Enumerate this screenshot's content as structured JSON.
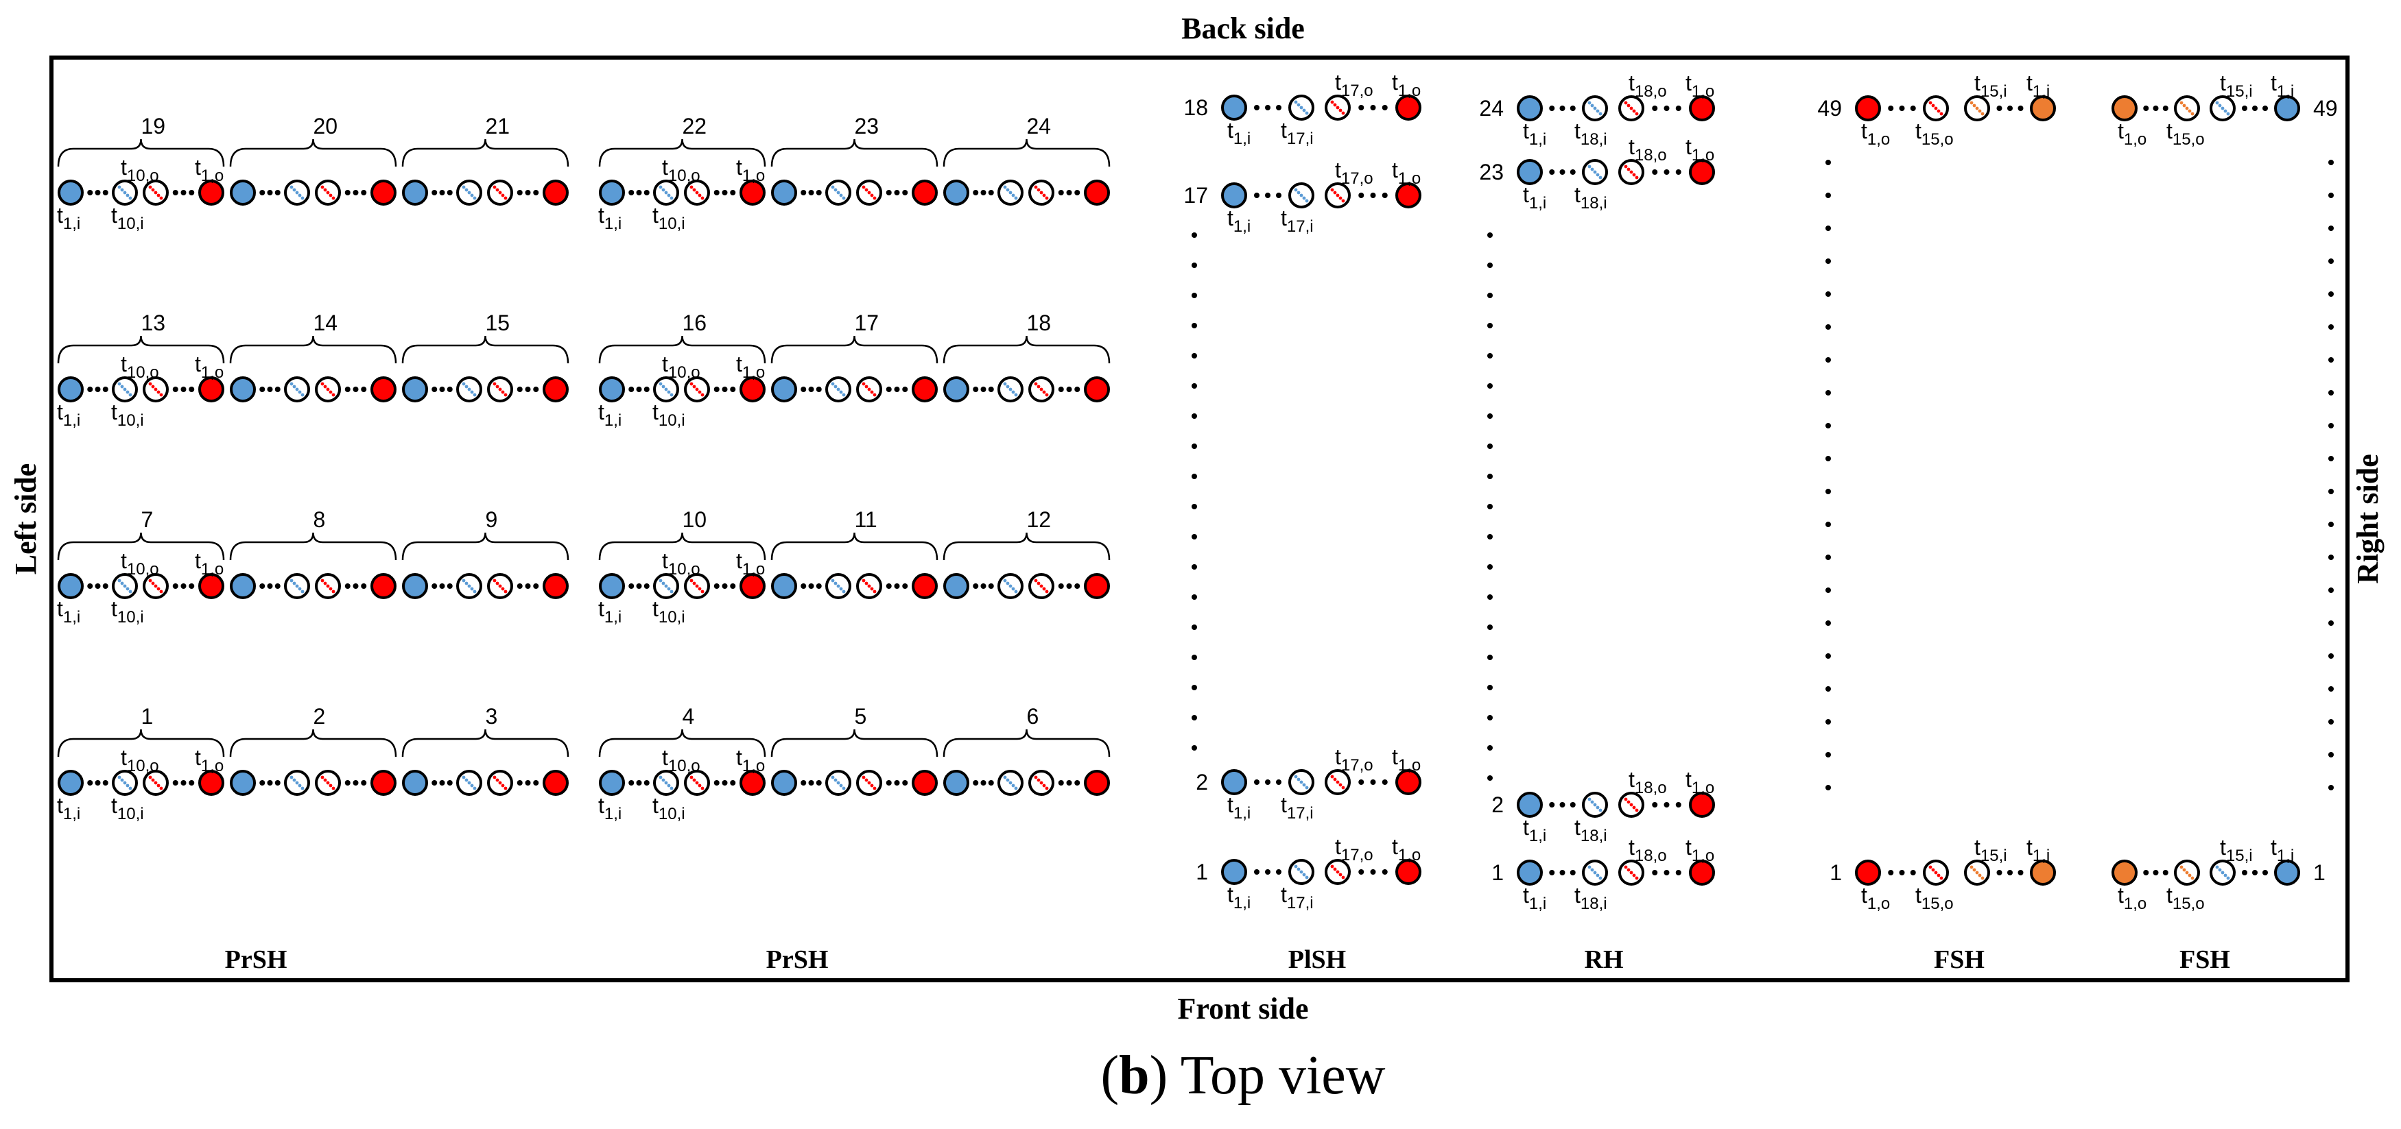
{
  "figure": {
    "back_label": "Back side",
    "front_label": "Front side",
    "left_label": "Left side",
    "right_label": "Right side",
    "caption_letter": "b",
    "caption_text": " Top view",
    "open_paren": "(",
    "close_paren": ")"
  },
  "colors": {
    "blue": "#5b9bd5",
    "red": "#ff0000",
    "orange": "#ed7d31",
    "white": "#ffffff",
    "stroke": "#000000"
  },
  "prsh_panels": [
    {
      "label": "PrSH",
      "rows": [
        {
          "groups": [
            "19",
            "20",
            "21"
          ]
        },
        {
          "groups": [
            "13",
            "14",
            "15"
          ]
        },
        {
          "groups": [
            "7",
            "8",
            "9"
          ]
        },
        {
          "groups": [
            "1",
            "2",
            "3"
          ]
        }
      ]
    },
    {
      "label": "PrSH",
      "rows": [
        {
          "groups": [
            "22",
            "23",
            "24"
          ]
        },
        {
          "groups": [
            "16",
            "17",
            "18"
          ]
        },
        {
          "groups": [
            "10",
            "11",
            "12"
          ]
        },
        {
          "groups": [
            "4",
            "5",
            "6"
          ]
        }
      ]
    }
  ],
  "prsh_labels": {
    "first_in": [
      "t",
      "1,i"
    ],
    "tenth_in": [
      "t",
      "10,i"
    ],
    "tenth_out": [
      "t",
      "10,o"
    ],
    "first_out": [
      "t",
      "1,o"
    ]
  },
  "plsh": {
    "label": "PlSH",
    "rows": [
      {
        "num": "18",
        "labels": [
          [
            "t",
            "1,i"
          ],
          [
            "t",
            "17,i"
          ],
          [
            "t",
            "17,o"
          ],
          [
            "t",
            "1,o"
          ]
        ]
      },
      {
        "num": "17",
        "labels": [
          [
            "t",
            "1,i"
          ],
          [
            "t",
            "17,i"
          ],
          [
            "t",
            "17,o"
          ],
          [
            "t",
            "1,o"
          ]
        ]
      },
      {
        "num": "2",
        "labels": [
          [
            "t",
            "1,i"
          ],
          [
            "t",
            "17,i"
          ],
          [
            "t",
            "17,o"
          ],
          [
            "t",
            "1,o"
          ]
        ]
      },
      {
        "num": "1",
        "labels": [
          [
            "t",
            "1,i"
          ],
          [
            "t",
            "17,i"
          ],
          [
            "t",
            "17,o"
          ],
          [
            "t",
            "1,o"
          ]
        ]
      }
    ]
  },
  "rh": {
    "label": "RH",
    "rows": [
      {
        "num": "24",
        "labels": [
          [
            "t",
            "1,i"
          ],
          [
            "t",
            "18,i"
          ],
          [
            "t",
            "18,o"
          ],
          [
            "t",
            "1,o"
          ]
        ]
      },
      {
        "num": "23",
        "labels": [
          [
            "t",
            "1,i"
          ],
          [
            "t",
            "18,i"
          ],
          [
            "t",
            "18,o"
          ],
          [
            "t",
            "1,o"
          ]
        ]
      },
      {
        "num": "2",
        "labels": [
          [
            "t",
            "1,i"
          ],
          [
            "t",
            "18,i"
          ],
          [
            "t",
            "18,o"
          ],
          [
            "t",
            "1,o"
          ]
        ]
      },
      {
        "num": "1",
        "labels": [
          [
            "t",
            "1,i"
          ],
          [
            "t",
            "18,i"
          ],
          [
            "t",
            "18,o"
          ],
          [
            "t",
            "1,o"
          ]
        ]
      }
    ]
  },
  "fsh_left": {
    "label": "FSH",
    "rows": [
      {
        "num": "49",
        "labels": [
          [
            "t",
            "1,o"
          ],
          [
            "t",
            "15,o"
          ],
          [
            "t",
            "15,i"
          ],
          [
            "t",
            "1,i"
          ]
        ]
      },
      {
        "num": "1",
        "labels": [
          [
            "t",
            "1,o"
          ],
          [
            "t",
            "15,o"
          ],
          [
            "t",
            "15,i"
          ],
          [
            "t",
            "1,i"
          ]
        ]
      }
    ]
  },
  "fsh_right": {
    "label": "FSH",
    "rows": [
      {
        "num": "49",
        "labels": [
          [
            "t",
            "1,o"
          ],
          [
            "t",
            "15,o"
          ],
          [
            "t",
            "15,i"
          ],
          [
            "t",
            "1,i"
          ]
        ]
      },
      {
        "num": "1",
        "labels": [
          [
            "t",
            "1,o"
          ],
          [
            "t",
            "15,o"
          ],
          [
            "t",
            "15,i"
          ],
          [
            "t",
            "1,i"
          ]
        ]
      }
    ]
  }
}
